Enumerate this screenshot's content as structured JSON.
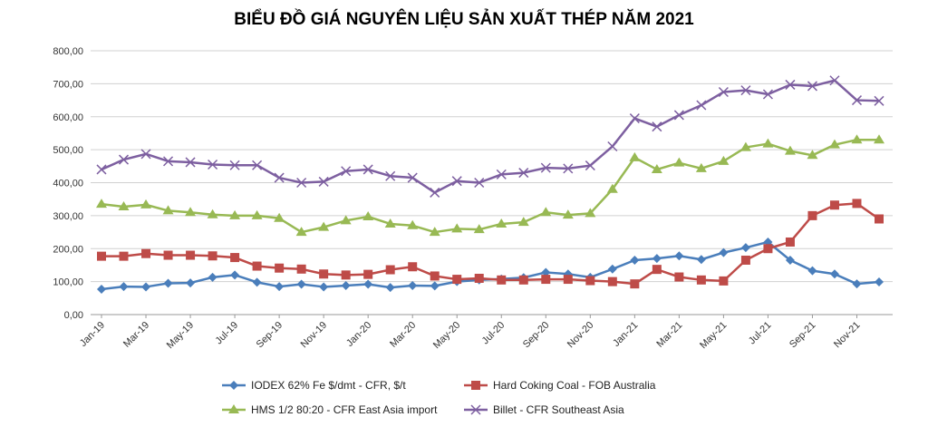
{
  "chart_data": {
    "type": "line",
    "title": "BIỂU ĐỒ GIÁ NGUYÊN LIỆU SẢN XUẤT THÉP NĂM 2021",
    "xlabel": "",
    "ylabel": "",
    "ylim": [
      0,
      800
    ],
    "yticks": [
      "0,00",
      "100,00",
      "200,00",
      "300,00",
      "400,00",
      "500,00",
      "600,00",
      "700,00",
      "800,00"
    ],
    "grid": true,
    "legend_placement": "bottom",
    "x": [
      "Jan-19",
      "Feb-19",
      "Mar-19",
      "Apr-19",
      "May-19",
      "Jun-19",
      "Jul-19",
      "Aug-19",
      "Sep-19",
      "Oct-19",
      "Nov-19",
      "Dec-19",
      "Jan-20",
      "Feb-20",
      "Mar-20",
      "Apr-20",
      "May-20",
      "Jun-20",
      "Jul-20",
      "Aug-20",
      "Sep-20",
      "Oct-20",
      "Nov-20",
      "Dec-20",
      "Jan-21",
      "Feb-21",
      "Mar-21",
      "Apr-21",
      "May-21",
      "Jun-21",
      "Jul-21",
      "Aug-21",
      "Sep-21",
      "Oct-21",
      "Nov-21",
      "Dec-21"
    ],
    "xtick_labels": [
      "Jan-19",
      "Mar-19",
      "May-19",
      "Jul-19",
      "Sep-19",
      "Nov-19",
      "Jan-20",
      "Mar-20",
      "May-20",
      "Jul-20",
      "Sep-20",
      "Nov-20",
      "Jan-21",
      "Mar-21",
      "May-21",
      "Jul-21",
      "Sep-21",
      "Nov-21"
    ],
    "series": [
      {
        "name": "IODEX 62% Fe $/dmt - CFR, $/t",
        "color": "#4a7ebb",
        "marker": "diamond",
        "values": [
          77,
          85,
          84,
          95,
          96,
          113,
          120,
          98,
          85,
          92,
          84,
          88,
          92,
          82,
          88,
          87,
          100,
          105,
          108,
          112,
          128,
          123,
          113,
          138,
          165,
          170,
          178,
          167,
          188,
          203,
          220,
          165,
          133,
          123,
          93,
          99
        ]
      },
      {
        "name": "Hard Coking Coal - FOB Australia",
        "color": "#be4b48",
        "marker": "square",
        "values": [
          177,
          177,
          185,
          180,
          180,
          178,
          173,
          147,
          141,
          138,
          123,
          120,
          122,
          136,
          145,
          117,
          107,
          110,
          105,
          105,
          107,
          107,
          103,
          100,
          93,
          137,
          114,
          105,
          102,
          165,
          200,
          220,
          300,
          332,
          337,
          290
        ]
      },
      {
        "name": "HMS 1/2 80:20 - CFR East Asia import",
        "color": "#98b954",
        "marker": "triangle",
        "values": [
          335,
          327,
          333,
          315,
          310,
          303,
          300,
          300,
          292,
          250,
          265,
          285,
          297,
          275,
          270,
          250,
          260,
          258,
          275,
          280,
          310,
          302,
          307,
          380,
          476,
          440,
          460,
          443,
          465,
          507,
          518,
          496,
          483,
          515,
          530,
          530
        ]
      },
      {
        "name": "Billet - CFR Southeast Asia",
        "color": "#7d5fa0",
        "marker": "x",
        "values": [
          440,
          470,
          487,
          465,
          462,
          455,
          453,
          453,
          415,
          400,
          403,
          435,
          440,
          420,
          415,
          370,
          405,
          400,
          425,
          430,
          445,
          443,
          452,
          510,
          595,
          570,
          605,
          635,
          675,
          680,
          668,
          697,
          693,
          710,
          650,
          648
        ]
      }
    ]
  }
}
